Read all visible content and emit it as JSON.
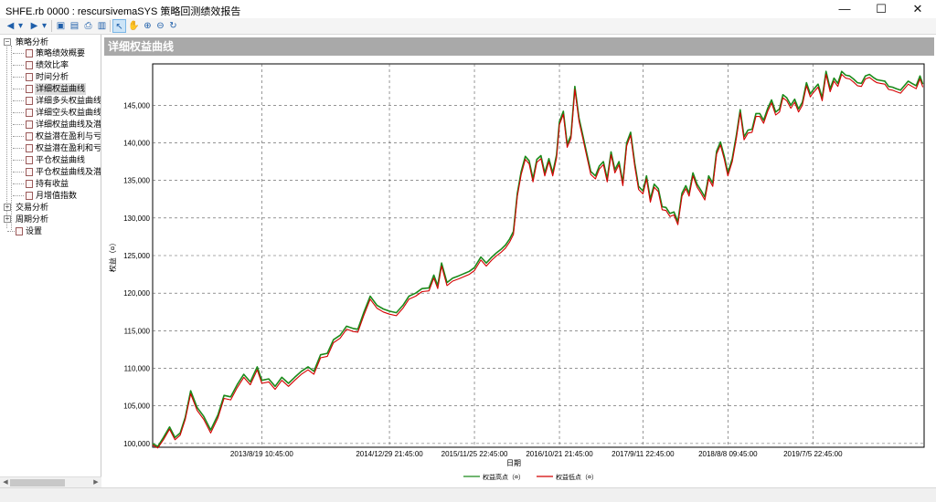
{
  "window": {
    "title": "SHFE.rb 0000 : rescursivemaSYS 策略回测绩效报告",
    "controls": {
      "minimize": "—",
      "maximize": "☐",
      "close": "✕"
    }
  },
  "toolbar": {
    "icons": [
      "back-arrow-icon",
      "dropdown-icon",
      "forward-arrow-icon",
      "dropdown-icon",
      "save-icon",
      "print-preview-icon",
      "print-icon",
      "report-icon",
      "pointer-icon",
      "hand-pan-icon",
      "zoom-in-icon",
      "zoom-out-icon",
      "refresh-icon"
    ],
    "glyphs": [
      "◀",
      "▾",
      "▶",
      "▾",
      "▣",
      "▤",
      "⎙",
      "▥",
      "↖",
      "✋",
      "⊕",
      "⊖",
      "↻"
    ]
  },
  "sidebar": {
    "sections": [
      {
        "label": "策略分析",
        "expanded": true,
        "items": [
          {
            "label": "策略绩效概要"
          },
          {
            "label": "绩效比率"
          },
          {
            "label": "时间分析"
          },
          {
            "label": "详细权益曲线",
            "selected": true
          },
          {
            "label": "详细多头权益曲线"
          },
          {
            "label": "详细空头权益曲线"
          },
          {
            "label": "详细权益曲线及潜在"
          },
          {
            "label": "权益潜在盈利与亏损"
          },
          {
            "label": "权益潜在盈利和亏损"
          },
          {
            "label": "平仓权益曲线"
          },
          {
            "label": "平仓权益曲线及潜在"
          },
          {
            "label": "持有收益"
          },
          {
            "label": "月增值指数"
          }
        ]
      },
      {
        "label": "交易分析",
        "expanded": false
      },
      {
        "label": "周期分析",
        "expanded": false
      }
    ],
    "settings_label": "设置"
  },
  "panel": {
    "title": "详细权益曲线"
  },
  "chart_data": {
    "type": "line",
    "ylabel": "权益（¤）",
    "xlabel": "日期",
    "ylim": [
      99500,
      150500
    ],
    "yticks": [
      100000,
      105000,
      110000,
      115000,
      120000,
      125000,
      130000,
      135000,
      140000,
      145000
    ],
    "ytick_labels": [
      "100,000",
      "105,000",
      "110,000",
      "115,000",
      "120,000",
      "125,000",
      "130,000",
      "135,000",
      "140,000",
      "145,000"
    ],
    "xlim": [
      "2012-06-20",
      "2020-09-10"
    ],
    "xticks": [
      "2013-08-19",
      "2014-12-29",
      "2015-11-25",
      "2016-10-21",
      "2017-09-11",
      "2018-08-08",
      "2019-07-05"
    ],
    "xtick_labels": [
      "2013/8/19 10:45:00",
      "2014/12/29 21:45:00",
      "2015/11/25 22:45:00",
      "2016/10/21 21:45:00",
      "2017/9/11 22:45:00",
      "2018/8/8 09:45:00",
      "2019/7/5 22:45:00"
    ],
    "grid": true,
    "legend_position": "bottom-center",
    "series": [
      {
        "name": "权益高点（¤）",
        "color": "#1a8a1a",
        "x": [
          "2012-06-20",
          "2012-07-10",
          "2012-08-01",
          "2012-08-25",
          "2012-09-15",
          "2012-10-05",
          "2012-10-25",
          "2012-11-15",
          "2012-12-10",
          "2013-01-05",
          "2013-02-01",
          "2013-03-01",
          "2013-03-25",
          "2013-04-20",
          "2013-05-15",
          "2013-06-10",
          "2013-07-05",
          "2013-08-01",
          "2013-08-19",
          "2013-09-15",
          "2013-10-10",
          "2013-11-05",
          "2013-12-01",
          "2013-12-25",
          "2014-01-20",
          "2014-02-15",
          "2014-03-10",
          "2014-04-05",
          "2014-05-01",
          "2014-05-25",
          "2014-06-20",
          "2014-07-15",
          "2014-08-10",
          "2014-08-28",
          "2014-09-20",
          "2014-10-15",
          "2014-11-10",
          "2014-12-05",
          "2014-12-29",
          "2015-01-25",
          "2015-02-20",
          "2015-03-15",
          "2015-04-10",
          "2015-05-05",
          "2015-06-01",
          "2015-06-20",
          "2015-07-05",
          "2015-07-20",
          "2015-08-10",
          "2015-09-01",
          "2015-09-25",
          "2015-10-15",
          "2015-11-05",
          "2015-11-25",
          "2015-12-20",
          "2016-01-10",
          "2016-02-01",
          "2016-02-20",
          "2016-03-10",
          "2016-03-25",
          "2016-04-10",
          "2016-04-25",
          "2016-05-10",
          "2016-05-25",
          "2016-06-10",
          "2016-06-25",
          "2016-07-10",
          "2016-07-25",
          "2016-08-10",
          "2016-08-25",
          "2016-09-10",
          "2016-09-25",
          "2016-10-10",
          "2016-10-21",
          "2016-11-05",
          "2016-11-20",
          "2016-12-05",
          "2016-12-20",
          "2017-01-05",
          "2017-01-20",
          "2017-02-05",
          "2017-02-20",
          "2017-03-10",
          "2017-03-25",
          "2017-04-10",
          "2017-04-25",
          "2017-05-10",
          "2017-05-25",
          "2017-06-10",
          "2017-06-25",
          "2017-07-10",
          "2017-07-25",
          "2017-08-10",
          "2017-08-25",
          "2017-09-11",
          "2017-09-25",
          "2017-10-10",
          "2017-10-25",
          "2017-11-10",
          "2017-11-25",
          "2017-12-10",
          "2017-12-25",
          "2018-01-10",
          "2018-01-25",
          "2018-02-10",
          "2018-02-25",
          "2018-03-10",
          "2018-03-25",
          "2018-04-10",
          "2018-04-25",
          "2018-05-10",
          "2018-05-25",
          "2018-06-10",
          "2018-06-25",
          "2018-07-10",
          "2018-07-25",
          "2018-08-08",
          "2018-08-25",
          "2018-09-10",
          "2018-09-25",
          "2018-10-10",
          "2018-10-25",
          "2018-11-10",
          "2018-11-25",
          "2018-12-10",
          "2018-12-25",
          "2019-01-10",
          "2019-01-25",
          "2019-02-10",
          "2019-02-25",
          "2019-03-10",
          "2019-03-25",
          "2019-04-10",
          "2019-04-25",
          "2019-05-10",
          "2019-05-25",
          "2019-06-10",
          "2019-06-25",
          "2019-07-05",
          "2019-07-25",
          "2019-08-10",
          "2019-08-25",
          "2019-09-10",
          "2019-09-25",
          "2019-10-10",
          "2019-10-25",
          "2019-11-10",
          "2019-11-25",
          "2019-12-10",
          "2019-12-25",
          "2020-01-10",
          "2020-01-25",
          "2020-02-10",
          "2020-02-25",
          "2020-03-10",
          "2020-03-25",
          "2020-04-10",
          "2020-04-25",
          "2020-05-10",
          "2020-05-25",
          "2020-06-10",
          "2020-06-25",
          "2020-07-10",
          "2020-07-25",
          "2020-08-10",
          "2020-08-25",
          "2020-09-05"
        ],
        "y": [
          100000,
          99600,
          100800,
          102200,
          100800,
          101400,
          103500,
          107000,
          104800,
          103600,
          101800,
          103800,
          106400,
          106200,
          107800,
          109200,
          108200,
          110200,
          108400,
          108600,
          107600,
          108800,
          108000,
          108800,
          109600,
          110200,
          109600,
          111800,
          112000,
          113800,
          114400,
          115600,
          115300,
          115200,
          117400,
          119600,
          118400,
          117900,
          117600,
          117400,
          118400,
          119600,
          120000,
          120600,
          120700,
          122400,
          121000,
          124000,
          121400,
          122000,
          122300,
          122600,
          122900,
          123400,
          124800,
          124000,
          124800,
          125400,
          125900,
          126400,
          127200,
          128200,
          133300,
          136200,
          138200,
          137600,
          135200,
          137800,
          138300,
          136000,
          137900,
          136000,
          138400,
          142800,
          144200,
          139800,
          141000,
          147500,
          143300,
          141000,
          138500,
          136200,
          135600,
          136900,
          137500,
          135200,
          138800,
          136400,
          137500,
          134700,
          140000,
          141400,
          137300,
          134200,
          133600,
          135600,
          132500,
          134500,
          133900,
          131500,
          131400,
          130600,
          130800,
          129500,
          133300,
          134300,
          133300,
          136000,
          134500,
          133700,
          132800,
          135600,
          134600,
          138900,
          140100,
          138200,
          136000,
          137900,
          141000,
          144400,
          140800,
          141700,
          141800,
          143900,
          143900,
          143000,
          144600,
          145700,
          144100,
          144500,
          146400,
          146000,
          145000,
          145800,
          144500,
          145400,
          148000,
          146500,
          147000,
          147800,
          146000,
          149500,
          147200,
          148600,
          147900,
          149500,
          149000,
          148900,
          148500,
          148000,
          147900,
          148900,
          149100,
          148700,
          148400,
          148300,
          148200,
          147500,
          147400,
          147200,
          147000,
          147600,
          148200,
          147900,
          147600,
          148900,
          147800
        ]
      },
      {
        "name": "权益低点（¤）",
        "color": "#d40000",
        "x": [
          "2012-06-20",
          "2012-07-10",
          "2012-08-01",
          "2012-08-25",
          "2012-09-15",
          "2012-10-05",
          "2012-10-25",
          "2012-11-15",
          "2012-12-10",
          "2013-01-05",
          "2013-02-01",
          "2013-03-01",
          "2013-03-25",
          "2013-04-20",
          "2013-05-15",
          "2013-06-10",
          "2013-07-05",
          "2013-08-01",
          "2013-08-19",
          "2013-09-15",
          "2013-10-10",
          "2013-11-05",
          "2013-12-01",
          "2013-12-25",
          "2014-01-20",
          "2014-02-15",
          "2014-03-10",
          "2014-04-05",
          "2014-05-01",
          "2014-05-25",
          "2014-06-20",
          "2014-07-15",
          "2014-08-10",
          "2014-08-28",
          "2014-09-20",
          "2014-10-15",
          "2014-11-10",
          "2014-12-05",
          "2014-12-29",
          "2015-01-25",
          "2015-02-20",
          "2015-03-15",
          "2015-04-10",
          "2015-05-05",
          "2015-06-01",
          "2015-06-20",
          "2015-07-05",
          "2015-07-20",
          "2015-08-10",
          "2015-09-01",
          "2015-09-25",
          "2015-10-15",
          "2015-11-05",
          "2015-11-25",
          "2015-12-20",
          "2016-01-10",
          "2016-02-01",
          "2016-02-20",
          "2016-03-10",
          "2016-03-25",
          "2016-04-10",
          "2016-04-25",
          "2016-05-10",
          "2016-05-25",
          "2016-06-10",
          "2016-06-25",
          "2016-07-10",
          "2016-07-25",
          "2016-08-10",
          "2016-08-25",
          "2016-09-10",
          "2016-09-25",
          "2016-10-10",
          "2016-10-21",
          "2016-11-05",
          "2016-11-20",
          "2016-12-05",
          "2016-12-20",
          "2017-01-05",
          "2017-01-20",
          "2017-02-05",
          "2017-02-20",
          "2017-03-10",
          "2017-03-25",
          "2017-04-10",
          "2017-04-25",
          "2017-05-10",
          "2017-05-25",
          "2017-06-10",
          "2017-06-25",
          "2017-07-10",
          "2017-07-25",
          "2017-08-10",
          "2017-08-25",
          "2017-09-11",
          "2017-09-25",
          "2017-10-10",
          "2017-10-25",
          "2017-11-10",
          "2017-11-25",
          "2017-12-10",
          "2017-12-25",
          "2018-01-10",
          "2018-01-25",
          "2018-02-10",
          "2018-02-25",
          "2018-03-10",
          "2018-03-25",
          "2018-04-10",
          "2018-04-25",
          "2018-05-10",
          "2018-05-25",
          "2018-06-10",
          "2018-06-25",
          "2018-07-10",
          "2018-07-25",
          "2018-08-08",
          "2018-08-25",
          "2018-09-10",
          "2018-09-25",
          "2018-10-10",
          "2018-10-25",
          "2018-11-10",
          "2018-11-25",
          "2018-12-10",
          "2018-12-25",
          "2019-01-10",
          "2019-01-25",
          "2019-02-10",
          "2019-02-25",
          "2019-03-10",
          "2019-03-25",
          "2019-04-10",
          "2019-04-25",
          "2019-05-10",
          "2019-05-25",
          "2019-06-10",
          "2019-06-25",
          "2019-07-05",
          "2019-07-25",
          "2019-08-10",
          "2019-08-25",
          "2019-09-10",
          "2019-09-25",
          "2019-10-10",
          "2019-10-25",
          "2019-11-10",
          "2019-11-25",
          "2019-12-10",
          "2019-12-25",
          "2020-01-10",
          "2020-01-25",
          "2020-02-10",
          "2020-02-25",
          "2020-03-10",
          "2020-03-25",
          "2020-04-10",
          "2020-04-25",
          "2020-05-10",
          "2020-05-25",
          "2020-06-10",
          "2020-06-25",
          "2020-07-10",
          "2020-07-25",
          "2020-08-10",
          "2020-08-25",
          "2020-09-05"
        ],
        "y": [
          99800,
          99400,
          100500,
          101900,
          100500,
          101100,
          103200,
          106600,
          104400,
          103200,
          101400,
          103400,
          106000,
          105800,
          107400,
          108800,
          107800,
          109800,
          108000,
          108200,
          107200,
          108400,
          107600,
          108400,
          109200,
          109800,
          109200,
          111400,
          111600,
          113400,
          114000,
          115200,
          114900,
          114800,
          117000,
          119200,
          118000,
          117500,
          117200,
          117000,
          118000,
          119200,
          119600,
          120200,
          120300,
          122000,
          120600,
          123600,
          121000,
          121600,
          121900,
          122200,
          122500,
          123000,
          124400,
          123600,
          124400,
          125000,
          125500,
          126000,
          126800,
          127800,
          132900,
          135800,
          137800,
          137200,
          134800,
          137400,
          137900,
          135600,
          137500,
          135600,
          138000,
          142400,
          143800,
          139400,
          140600,
          147100,
          142900,
          140600,
          138100,
          135800,
          135200,
          136500,
          137100,
          134800,
          138400,
          136000,
          137100,
          134300,
          139600,
          141000,
          136900,
          133800,
          133200,
          135200,
          132100,
          134100,
          133500,
          131100,
          131000,
          130200,
          130400,
          129100,
          132900,
          133900,
          132900,
          135600,
          134100,
          133300,
          132400,
          135200,
          134200,
          138500,
          139700,
          137800,
          135600,
          137500,
          140600,
          144000,
          140400,
          141300,
          141400,
          143500,
          143500,
          142600,
          144200,
          145300,
          143700,
          144100,
          146000,
          145600,
          144600,
          145400,
          144100,
          145000,
          147600,
          146100,
          146600,
          147400,
          145600,
          149100,
          146800,
          148200,
          147500,
          149100,
          148600,
          148500,
          148100,
          147600,
          147500,
          148500,
          148700,
          148300,
          148000,
          147900,
          147800,
          147100,
          147000,
          146800,
          146600,
          147200,
          147800,
          147500,
          147200,
          148500,
          147400
        ]
      }
    ]
  }
}
